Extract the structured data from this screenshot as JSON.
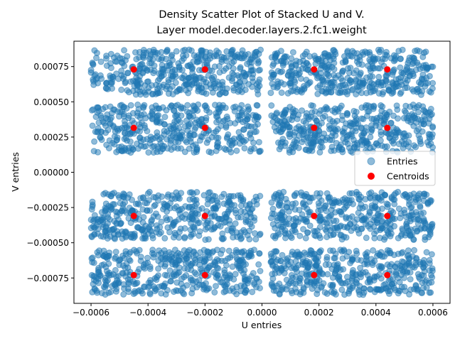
{
  "chart_data": {
    "type": "scatter",
    "title_line1": "Density Scatter Plot of Stacked U and V.",
    "title_line2": "Layer model.decoder.layers.2.fc1.weight",
    "xlabel": "U entries",
    "ylabel": "V entries",
    "xlim": [
      -0.00066,
      0.00066
    ],
    "ylim": [
      -0.00093,
      0.00093
    ],
    "xticks": [
      -0.0006,
      -0.0004,
      -0.0002,
      0.0,
      0.0002,
      0.0004,
      0.0006
    ],
    "xtick_labels": [
      "−0.0006",
      "−0.0004",
      "−0.0002",
      "0.0000",
      "0.0002",
      "0.0004",
      "0.0006"
    ],
    "yticks": [
      0.00075,
      0.0005,
      0.00025,
      0.0,
      -0.00025,
      -0.0005,
      -0.00075
    ],
    "ytick_labels": [
      "0.00075",
      "0.00050",
      "0.00025",
      "0.00000",
      "−0.00025",
      "−0.00050",
      "−0.00075"
    ],
    "grid": false,
    "legend_position": "center-right",
    "series": [
      {
        "name": "Entries",
        "color": "#1f77b4",
        "alpha": 0.5,
        "x_clusters": [
          [
            -0.0006,
            -5e-06
          ],
          [
            3e-05,
            0.0006
          ]
        ],
        "y_bands": [
          [
            0.00055,
            0.00087
          ],
          [
            0.00014,
            0.00048
          ],
          [
            -0.00048,
            -0.00014
          ],
          [
            -0.00087,
            -0.00055
          ]
        ]
      },
      {
        "name": "Centroids",
        "color": "#ff0000",
        "x": [
          -0.00045,
          -0.0002,
          0.000183,
          0.00044,
          -0.00045,
          -0.0002,
          0.000183,
          0.00044,
          -0.00045,
          -0.0002,
          0.000183,
          0.00044,
          -0.00045,
          -0.0002,
          0.000183,
          0.00044
        ],
        "y": [
          0.00073,
          0.00073,
          0.00073,
          0.00073,
          0.000315,
          0.000315,
          0.000315,
          0.000315,
          -0.00031,
          -0.00031,
          -0.00031,
          -0.00031,
          -0.00073,
          -0.00073,
          -0.00073,
          -0.00073
        ]
      }
    ]
  }
}
